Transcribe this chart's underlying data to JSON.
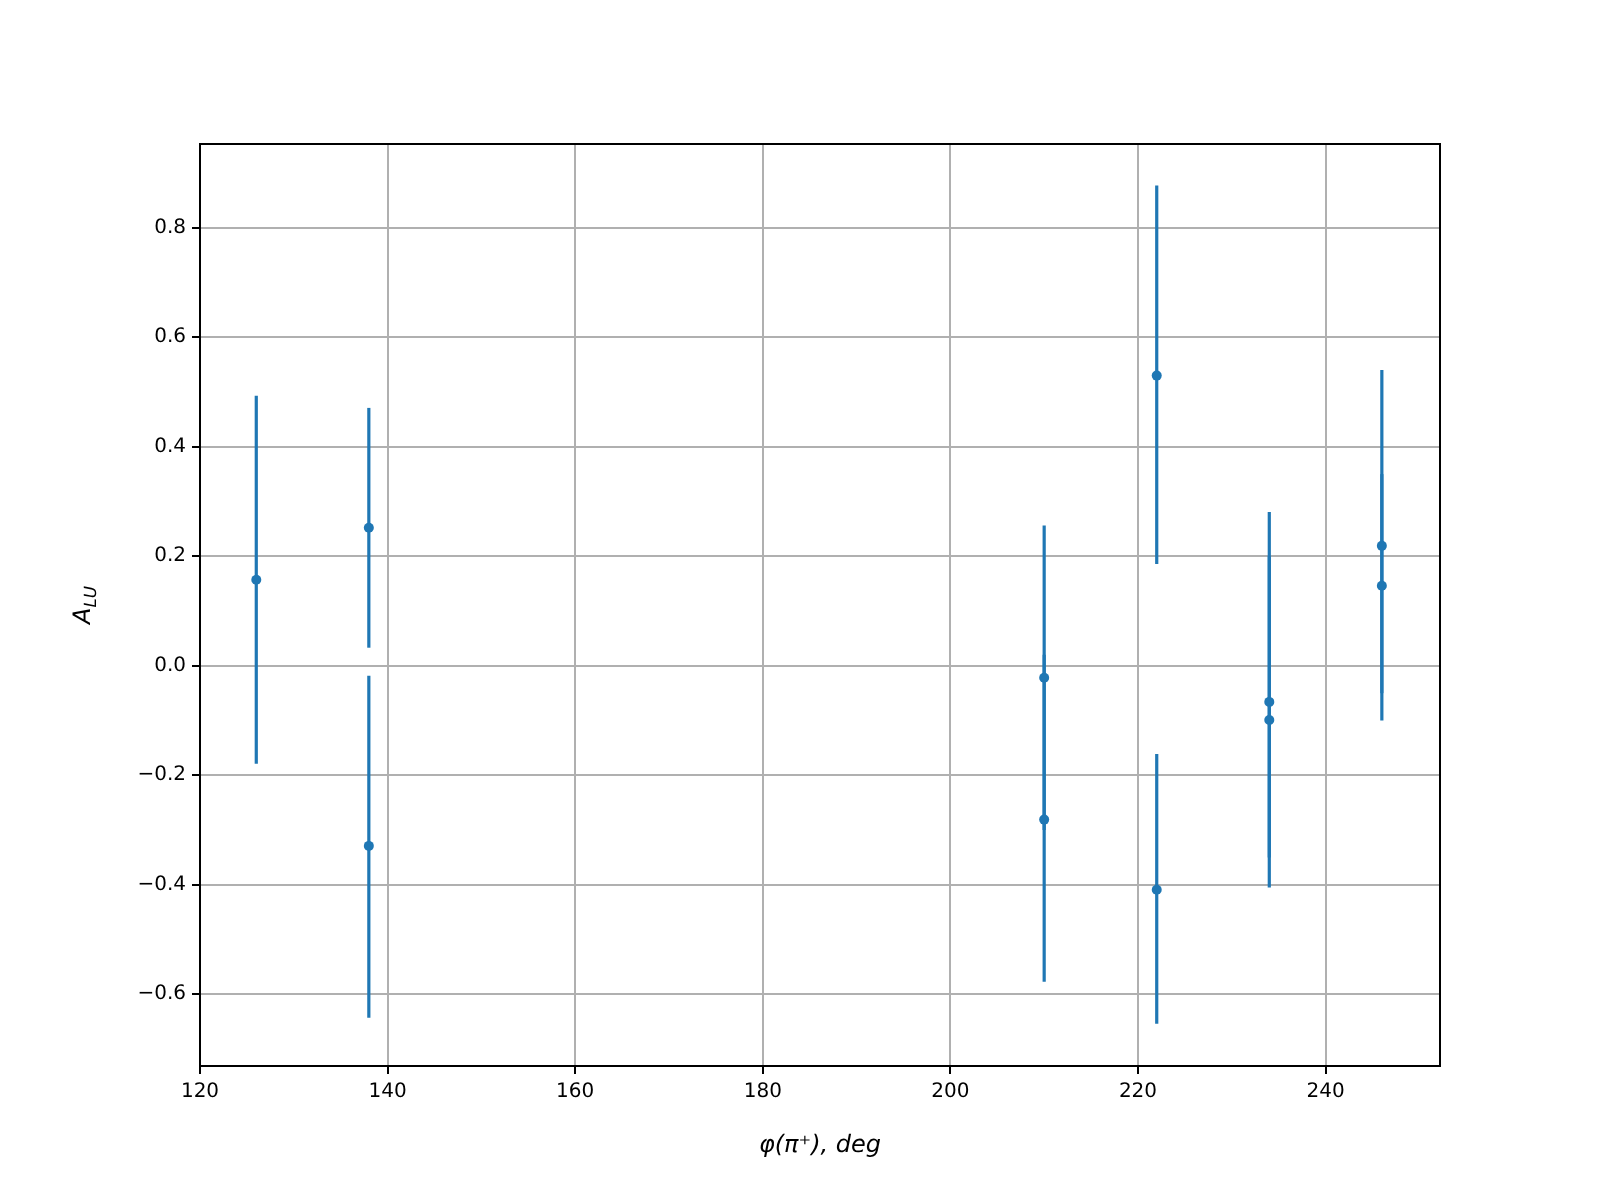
{
  "chart_data": {
    "type": "scatter",
    "xlabel": "φ(π⁺), deg",
    "ylabel": "A$_{LU}$",
    "x": [
      126,
      138,
      138,
      210,
      210,
      222,
      222,
      234,
      234,
      246,
      246
    ],
    "values": [
      0.157,
      0.252,
      -0.329,
      -0.022,
      -0.281,
      0.53,
      -0.409,
      -0.066,
      -0.099,
      0.219,
      0.146
    ],
    "errors": [
      [
        -0.179,
        0.493
      ],
      [
        0.033,
        0.471
      ],
      [
        -0.643,
        -0.018
      ],
      [
        -0.3,
        0.256
      ],
      [
        -0.577,
        0.02
      ],
      [
        0.186,
        0.877
      ],
      [
        -0.654,
        -0.161
      ],
      [
        -0.35,
        0.281
      ],
      [
        -0.405,
        0.2
      ],
      [
        -0.1,
        0.54
      ],
      [
        -0.05,
        0.35
      ]
    ],
    "color": "#1f77b4",
    "marker": "circle",
    "xlim": [
      120,
      252.2
    ],
    "ylim": [
      -0.731,
      0.953
    ],
    "xticks": [
      120,
      140,
      160,
      180,
      200,
      220,
      240
    ],
    "yticks": [
      {
        "value": -0.6,
        "label": "−0.6"
      },
      {
        "value": -0.4,
        "label": "−0.4"
      },
      {
        "value": -0.2,
        "label": "−0.2"
      },
      {
        "value": 0,
        "label": "0.0"
      },
      {
        "value": 0.2,
        "label": "0.2"
      },
      {
        "value": 0.4,
        "label": "0.4"
      },
      {
        "value": 0.6,
        "label": "0.6"
      },
      {
        "value": 0.8,
        "label": "0.8"
      }
    ],
    "grid": true
  }
}
